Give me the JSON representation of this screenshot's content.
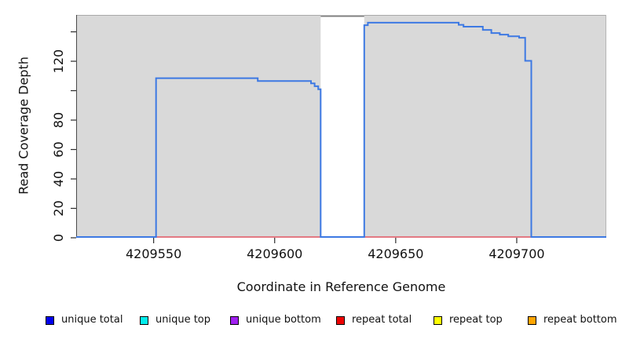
{
  "figure": {
    "x_axis_title": "Coordinate in Reference Genome",
    "y_axis_title": "Read Coverage Depth"
  },
  "legend": {
    "items": [
      {
        "label": "unique total",
        "color": "#0000EE"
      },
      {
        "label": "unique top",
        "color": "#00EEEE"
      },
      {
        "label": "unique bottom",
        "color": "#A020F0"
      },
      {
        "label": "repeat total",
        "color": "#EE0000"
      },
      {
        "label": "repeat top",
        "color": "#FFFF00"
      },
      {
        "label": "repeat bottom",
        "color": "#FFA500"
      }
    ]
  },
  "chart_data": {
    "type": "line",
    "title": "",
    "xlabel": "Coordinate in Reference Genome",
    "ylabel": "Read Coverage Depth",
    "x_range": [
      4209518,
      4209737
    ],
    "y_range": [
      0,
      151.5
    ],
    "x_ticks": [
      {
        "v": 4209550,
        "label": "4209550"
      },
      {
        "v": 4209600,
        "label": "4209600"
      },
      {
        "v": 4209650,
        "label": "4209650"
      },
      {
        "v": 4209700,
        "label": "4209700"
      }
    ],
    "y_ticks": [
      {
        "v": 0,
        "label": "0"
      },
      {
        "v": 20,
        "label": "20"
      },
      {
        "v": 40,
        "label": "40"
      },
      {
        "v": 60,
        "label": "60"
      },
      {
        "v": 80,
        "label": "80"
      },
      {
        "v": 100,
        "label": ""
      },
      {
        "v": 120,
        "label": "120"
      },
      {
        "v": 140,
        "label": ""
      }
    ],
    "grid": false,
    "legend_position": "bottom",
    "plot_bg": "#d9d9d9",
    "plot_border": {
      "top": "#a9a9a9",
      "left": "#4a4a4a",
      "right": "#b5b5b5"
    },
    "gap_regions": [
      {
        "x1": 4209619,
        "x2": 4209637,
        "fill": "#ffffff",
        "top_border": "#7f7f7f"
      }
    ],
    "series": [
      {
        "name": "repeat total",
        "color": "#e8404f",
        "width": 1.3,
        "points": [
          [
            4209551,
            0
          ],
          [
            4209706,
            0
          ]
        ]
      },
      {
        "name": "unique total",
        "color": "#3d79e3",
        "width": 2,
        "points": [
          [
            4209518,
            0
          ],
          [
            4209551,
            0
          ],
          [
            4209551,
            108.5
          ],
          [
            4209593,
            108.5
          ],
          [
            4209593,
            106.6
          ],
          [
            4209615,
            106.6
          ],
          [
            4209615,
            105
          ],
          [
            4209616.5,
            105
          ],
          [
            4209616.5,
            103
          ],
          [
            4209618,
            103
          ],
          [
            4209618,
            101
          ],
          [
            4209619,
            101
          ],
          [
            4209619,
            0
          ],
          [
            4209637,
            0
          ],
          [
            4209637,
            144.5
          ],
          [
            4209638.5,
            144.5
          ],
          [
            4209638.5,
            146.2
          ],
          [
            4209676,
            146.2
          ],
          [
            4209676,
            144.8
          ],
          [
            4209678,
            144.8
          ],
          [
            4209678,
            143.5
          ],
          [
            4209686,
            143.5
          ],
          [
            4209686,
            141.3
          ],
          [
            4209689.5,
            141.3
          ],
          [
            4209689.5,
            139.2
          ],
          [
            4209693,
            139.2
          ],
          [
            4209693,
            138.1
          ],
          [
            4209696.5,
            138.1
          ],
          [
            4209696.5,
            137
          ],
          [
            4209701,
            137
          ],
          [
            4209701,
            136
          ],
          [
            4209703.5,
            136
          ],
          [
            4209703.5,
            120.3
          ],
          [
            4209706,
            120.3
          ],
          [
            4209706,
            0
          ],
          [
            4209737,
            0
          ]
        ]
      }
    ]
  }
}
